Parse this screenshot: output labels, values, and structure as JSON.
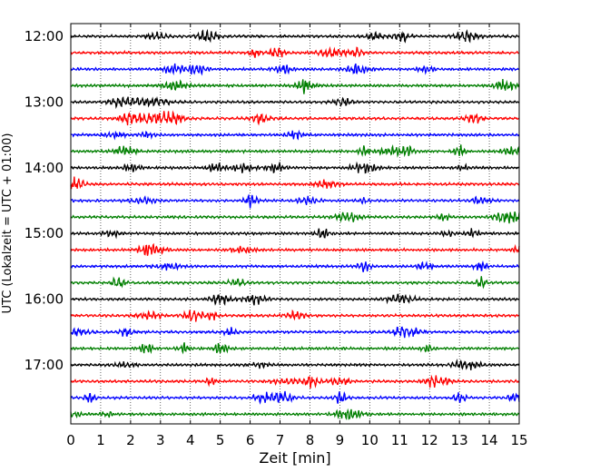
{
  "chart_data": {
    "type": "line",
    "title": "",
    "xlabel": "Zeit  [min]",
    "ylabel": "UTC (Lokalzeit = UTC + 01:00)",
    "xlim": [
      0,
      15
    ],
    "x_ticks": [
      "0",
      "1",
      "2",
      "3",
      "4",
      "5",
      "6",
      "7",
      "8",
      "9",
      "10",
      "11",
      "12",
      "13",
      "14",
      "15"
    ],
    "y_ticks": [
      "12:00",
      "13:00",
      "14:00",
      "15:00",
      "16:00",
      "17:00"
    ],
    "grid": "vertical dotted lines at each minute",
    "trace_interval_minutes": 15,
    "trace_colors": [
      "#000000",
      "#ff0000",
      "#0000ff",
      "#007f00"
    ],
    "trace_start_times": [
      "12:00",
      "12:15",
      "12:30",
      "12:45",
      "13:00",
      "13:15",
      "13:30",
      "13:45",
      "14:00",
      "14:15",
      "14:30",
      "14:45",
      "15:00",
      "15:15",
      "15:30",
      "15:45",
      "16:00",
      "16:15",
      "16:30",
      "16:45",
      "17:00",
      "17:15",
      "17:30",
      "17:45"
    ]
  }
}
